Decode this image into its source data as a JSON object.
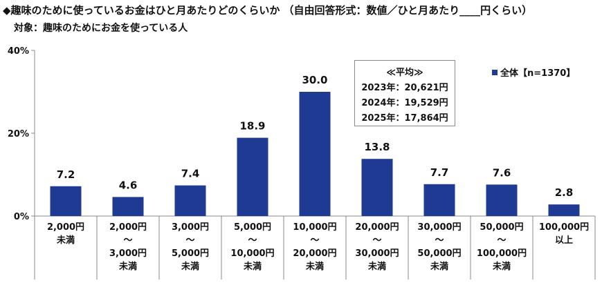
{
  "header": {
    "title": "◆趣味のために使っているお金はひと月あたりどのくらいか （自由回答形式：数値／ひと月あたり____円くらい）",
    "subtitle": "対象：趣味のためにお金を使っている人"
  },
  "legend": {
    "label": "全体【n=1370】"
  },
  "average_box": {
    "heading": "≪平均≫",
    "lines": [
      "2023年：20,621円",
      "2024年：19,529円",
      "2025年：17,864円"
    ]
  },
  "colors": {
    "bar": "#1f3a93",
    "axis": "#888888"
  },
  "chart_data": {
    "type": "bar",
    "categories": [
      [
        "2,000円",
        "未満"
      ],
      [
        "2,000円",
        "～",
        "3,000円",
        "未満"
      ],
      [
        "3,000円",
        "～",
        "5,000円",
        "未満"
      ],
      [
        "5,000円",
        "～",
        "10,000円",
        "未満"
      ],
      [
        "10,000円",
        "～",
        "20,000円",
        "未満"
      ],
      [
        "20,000円",
        "～",
        "30,000円",
        "未満"
      ],
      [
        "30,000円",
        "～",
        "50,000円",
        "未満"
      ],
      [
        "50,000円",
        "～",
        "100,000円",
        "未満"
      ],
      [
        "100,000円",
        "以上"
      ]
    ],
    "series": [
      {
        "name": "全体【n=1370】",
        "values": [
          7.2,
          4.6,
          7.4,
          18.9,
          30.0,
          13.8,
          7.7,
          7.6,
          2.8
        ]
      }
    ],
    "value_labels": [
      "7.2",
      "4.6",
      "7.4",
      "18.9",
      "30.0",
      "13.8",
      "7.7",
      "7.6",
      "2.8"
    ],
    "ylim": [
      0,
      40
    ],
    "yticks": [
      0,
      20,
      40
    ],
    "ytick_labels": [
      "0%",
      "20%",
      "40%"
    ],
    "grid": false,
    "legend_position": "top-right"
  }
}
